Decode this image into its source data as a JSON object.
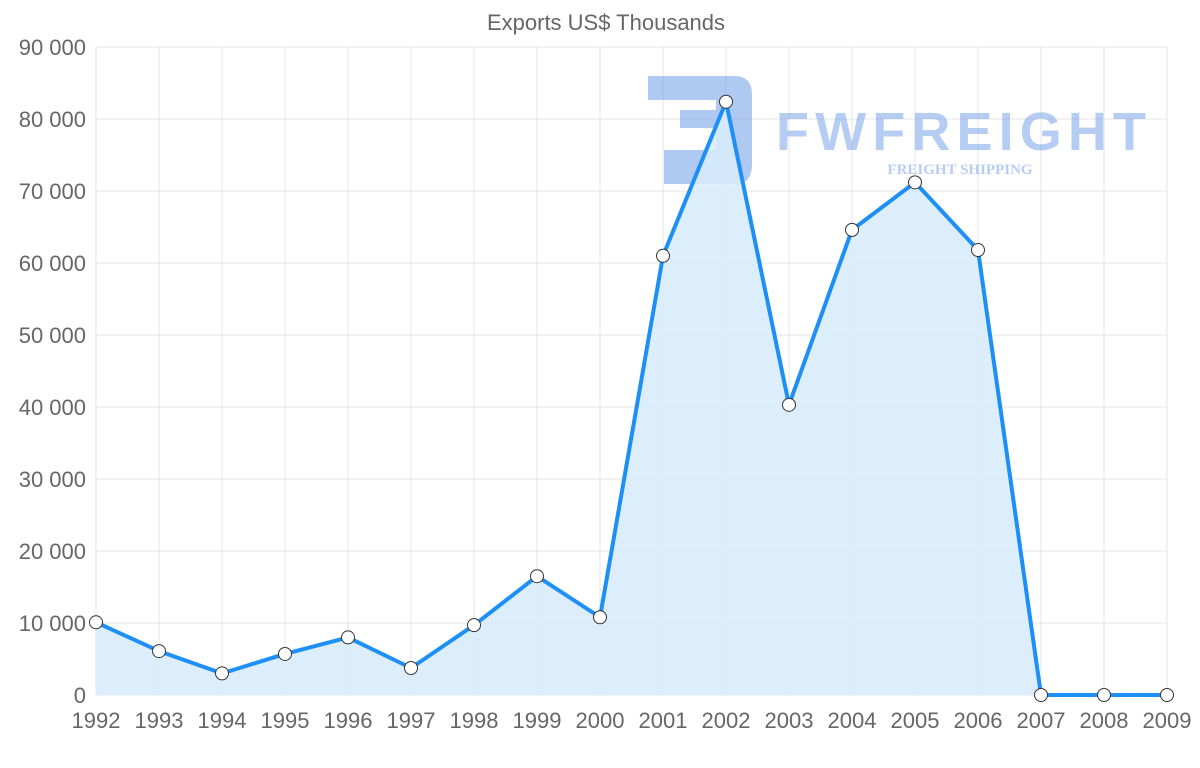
{
  "chart_data": {
    "type": "area",
    "title": "Exports US$ Thousands",
    "xlabel": "",
    "ylabel": "",
    "categories": [
      "1992",
      "1993",
      "1994",
      "1995",
      "1996",
      "1997",
      "1998",
      "1999",
      "2000",
      "2001",
      "2002",
      "2003",
      "2004",
      "2005",
      "2006",
      "2007",
      "2008",
      "2009"
    ],
    "series": [
      {
        "name": "Exports US$ Thousands",
        "values": [
          10100,
          6100,
          3000,
          5700,
          8000,
          3750,
          9700,
          16500,
          10800,
          61000,
          82400,
          40300,
          64600,
          71200,
          61800,
          0,
          0,
          0
        ]
      }
    ],
    "ylim": [
      0,
      90000
    ],
    "yticks": [
      0,
      10000,
      20000,
      30000,
      40000,
      50000,
      60000,
      70000,
      80000,
      90000
    ],
    "ytick_labels": [
      "0",
      "10 000",
      "20 000",
      "30 000",
      "40 000",
      "50 000",
      "60 000",
      "70 000",
      "80 000",
      "90 000"
    ],
    "grid": true,
    "legend": "none",
    "colors": {
      "line": "#1e90f5",
      "fill": "#d8ebfc",
      "grid": "#e4e4e4"
    }
  },
  "watermark": {
    "brand": "FWFREIGHT",
    "tagline": "FREIGHT SHIPPING"
  }
}
